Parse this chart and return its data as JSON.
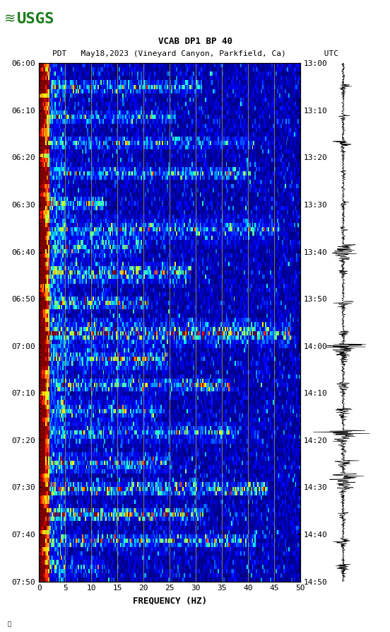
{
  "title_line1": "VCAB DP1 BP 40",
  "title_line2": "PDT   May18,2023 (Vineyard Canyon, Parkfield, Ca)        UTC",
  "xlabel": "FREQUENCY (HZ)",
  "left_yticks": [
    "06:00",
    "06:10",
    "06:20",
    "06:30",
    "06:40",
    "06:50",
    "07:00",
    "07:10",
    "07:20",
    "07:30",
    "07:40",
    "07:50"
  ],
  "right_yticks": [
    "13:00",
    "13:10",
    "13:20",
    "13:30",
    "13:40",
    "13:50",
    "14:00",
    "14:10",
    "14:20",
    "14:30",
    "14:40",
    "14:50"
  ],
  "xticks": [
    0,
    5,
    10,
    15,
    20,
    25,
    30,
    35,
    40,
    45,
    50
  ],
  "freq_min": 0,
  "freq_max": 50,
  "time_steps": 120,
  "freq_steps": 200,
  "bg_color": "#ffffff",
  "spectrogram_cmap": "jet",
  "logo_color": "#1a7a1a",
  "grid_color": "#c8c800",
  "grid_alpha": 0.6,
  "vertical_grid_freqs": [
    5,
    10,
    15,
    20,
    25,
    30,
    35,
    40,
    45
  ],
  "fig_width": 5.52,
  "fig_height": 8.93,
  "font_size_title": 9,
  "font_size_labels": 8
}
